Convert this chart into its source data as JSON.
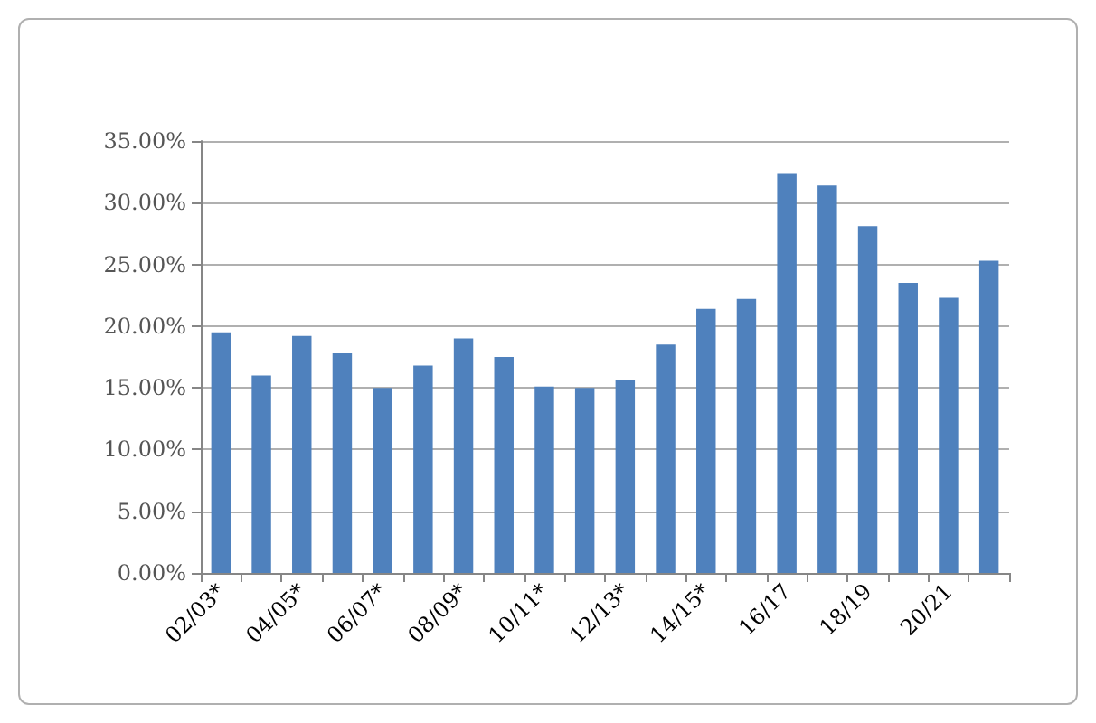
{
  "chart_data": {
    "type": "bar",
    "categories": [
      "02/03*",
      null,
      "04/05*",
      null,
      "06/07*",
      null,
      "08/09*",
      null,
      "10/11*",
      null,
      "12/13*",
      null,
      "14/15*",
      null,
      "16/17",
      null,
      "18/19",
      null,
      "20/21",
      null
    ],
    "values": [
      19.5,
      16.0,
      19.2,
      17.8,
      15.0,
      16.8,
      19.0,
      17.5,
      15.1,
      15.0,
      15.6,
      18.5,
      21.4,
      22.2,
      32.4,
      31.4,
      28.1,
      23.5,
      22.3,
      25.3
    ],
    "color": "#4f81bd",
    "ylim": [
      0,
      35
    ],
    "yticks": [
      {
        "value": 0,
        "label": "0.00%"
      },
      {
        "value": 5,
        "label": "5.00%"
      },
      {
        "value": 10,
        "label": "10.00%"
      },
      {
        "value": 15,
        "label": "15.00%"
      },
      {
        "value": 20,
        "label": "20.00%"
      },
      {
        "value": 25,
        "label": "25.00%"
      },
      {
        "value": 30,
        "label": "30.00%"
      },
      {
        "value": 35,
        "label": "35.00%"
      }
    ],
    "grid": "y"
  }
}
